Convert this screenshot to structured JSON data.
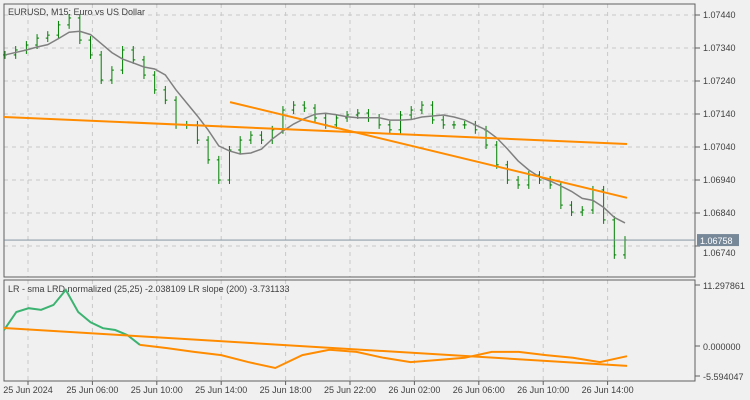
{
  "chart_data": [
    {
      "type": "bar",
      "title": "EURUSD, M15:  Euro vs US Dollar",
      "symbol": "EURUSD",
      "timeframe": "M15",
      "ylim": [
        1.0666,
        1.0748
      ],
      "y_ticks": [
        "1.07440",
        "1.07340",
        "1.07240",
        "1.07140",
        "1.07040",
        "1.06940",
        "1.06840",
        "1.06740"
      ],
      "current_price": "1.06758",
      "grid": true,
      "close": [
        1.07319,
        1.07334,
        1.07349,
        1.0737,
        1.07379,
        1.0741,
        1.07431,
        1.07364,
        1.07319,
        1.07243,
        1.07273,
        1.07334,
        1.07304,
        1.07258,
        1.07213,
        1.07182,
        1.07107,
        1.07107,
        1.07061,
        1.07001,
        1.0694,
        1.07031,
        1.07061,
        1.07076,
        1.07061,
        1.07092,
        1.07152,
        1.07167,
        1.07158,
        1.07128,
        1.07107,
        1.07128,
        1.07137,
        1.07143,
        1.07128,
        1.07107,
        1.07092,
        1.07137,
        1.07152,
        1.07167,
        1.07122,
        1.07107,
        1.07107,
        1.07107,
        1.07092,
        1.07046,
        1.06986,
        1.0694,
        1.06925,
        1.06955,
        1.0694,
        1.06925,
        1.06864,
        1.06843,
        1.06849,
        1.0691,
        1.06819,
        1.06713,
        1.06758
      ],
      "regression_lines": [
        {
          "from": 1.07131,
          "to": 1.07049
        },
        {
          "from": 1.07176,
          "to": 1.06886
        }
      ],
      "x_ticks": [
        "25 Jun 2024",
        "25 Jun 06:00",
        "25 Jun 10:00",
        "25 Jun 14:00",
        "25 Jun 18:00",
        "25 Jun 22:00",
        "26 Jun 02:00",
        "26 Jun 06:00",
        "26 Jun 10:00",
        "26 Jun 14:00"
      ],
      "colors": {
        "bars": "#008000",
        "sma": "#808080",
        "lines": "#ff8c00",
        "background": "#f0f0f0",
        "price_tag": "#778899"
      }
    },
    {
      "type": "line",
      "title": "LR - sma LRD normalized (25,25) -2.038109 LR slope (200) -3.731133",
      "ylim": [
        -5.594047,
        11.297861
      ],
      "y_ticks": [
        "11.297861",
        "0.000000",
        "-5.594047"
      ],
      "green_series": [
        2.96,
        6.3,
        7.0,
        6.7,
        7.6,
        10.4,
        6.3,
        4.4,
        3.3,
        2.96,
        2.0,
        0.2
      ],
      "orange_series": [
        0.2,
        -0.4,
        -1.1,
        -1.7,
        -3.0,
        -4.1,
        -1.7,
        -0.7,
        -1.1,
        -2.2,
        -3.0,
        -2.6,
        -2.2,
        -1.1,
        -1.1,
        -1.7,
        -2.2,
        -3.0,
        -1.9
      ],
      "slope_line": {
        "from": 3.33,
        "to": -3.7
      },
      "colors": {
        "green": "#3cb371",
        "orange": "#ff8c00"
      }
    }
  ]
}
